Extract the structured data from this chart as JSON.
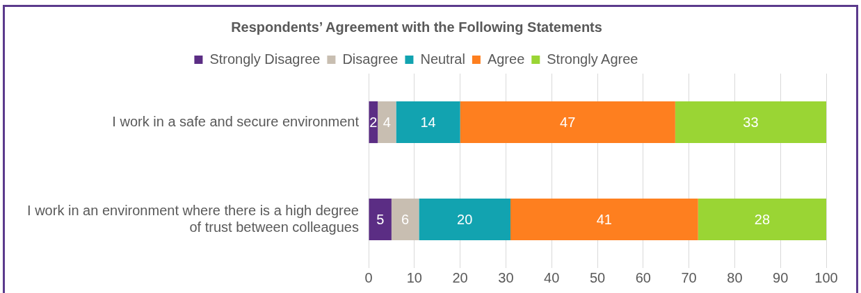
{
  "chart_data": {
    "type": "bar",
    "orientation": "horizontal",
    "stacked": true,
    "title": "Respondents’ Agreement with the Following Statements",
    "categories": [
      "I work in a safe and secure environment",
      "I work in an environment where there is a high degree of trust between colleagues"
    ],
    "series": [
      {
        "name": "Strongly Disagree",
        "color": "#5b2d84",
        "values": [
          2,
          5
        ]
      },
      {
        "name": "Disagree",
        "color": "#c8beb1",
        "values": [
          4,
          6
        ]
      },
      {
        "name": "Neutral",
        "color": "#12a3b0",
        "values": [
          14,
          20
        ]
      },
      {
        "name": "Agree",
        "color": "#fe7f1f",
        "values": [
          47,
          41
        ]
      },
      {
        "name": "Strongly Agree",
        "color": "#9ad534",
        "values": [
          33,
          28
        ]
      }
    ],
    "xlim": [
      0,
      100
    ],
    "xticks": [
      0,
      10,
      20,
      30,
      40,
      50,
      60,
      70,
      80,
      90,
      100
    ],
    "grid": "x",
    "legend": "top",
    "data_labels": true
  }
}
